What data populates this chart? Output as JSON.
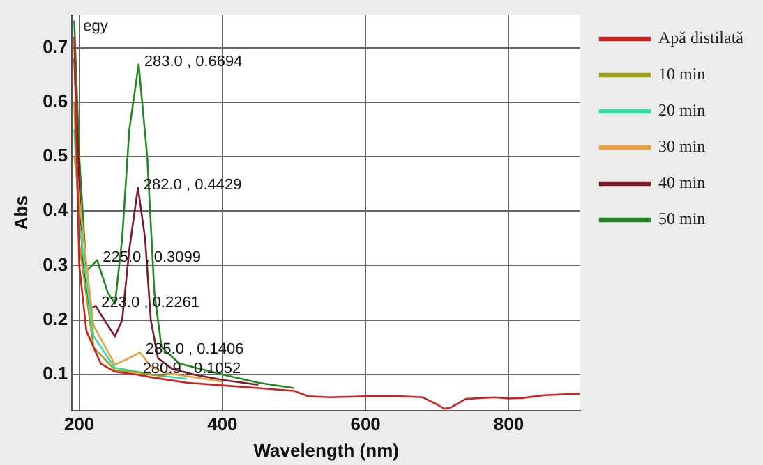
{
  "chart_data": {
    "type": "line",
    "xlabel": "Wavelength (nm)",
    "ylabel": "Abs",
    "xlim": [
      190,
      900
    ],
    "xticks": [
      200,
      400,
      600,
      800
    ],
    "ylim": [
      0.034,
      0.76
    ],
    "yticks": [
      0.1,
      0.2,
      0.3,
      0.4,
      0.5,
      0.6,
      0.7
    ],
    "grid": true,
    "line_style": "solid",
    "marker": "none",
    "legend": "right",
    "annotations": [
      "egy",
      {
        "text": "283.0 , 0.6694",
        "x": 283,
        "y": 0.6694
      },
      {
        "text": "282.0 , 0.4429",
        "x": 282,
        "y": 0.4429
      },
      {
        "text": "225.0 , 0.3099",
        "x": 225,
        "y": 0.3099
      },
      {
        "text": "223.0 , 0.2261",
        "x": 223,
        "y": 0.2261
      },
      {
        "text": "285.0 , 0.1406",
        "x": 285,
        "y": 0.1406
      },
      {
        "text": "280.9 , 0.1052",
        "x": 280.9,
        "y": 0.1052
      }
    ],
    "series": [
      {
        "name": "Apă distilată",
        "color": "#cc2222",
        "x": [
          193,
          200,
          210,
          230,
          250,
          280,
          300,
          350,
          400,
          450,
          500,
          520,
          550,
          600,
          650,
          680,
          700,
          710,
          720,
          740,
          780,
          800,
          820,
          850,
          900
        ],
        "values": [
          0.72,
          0.3,
          0.18,
          0.12,
          0.105,
          0.1,
          0.095,
          0.085,
          0.08,
          0.075,
          0.07,
          0.06,
          0.058,
          0.06,
          0.06,
          0.058,
          0.045,
          0.037,
          0.04,
          0.055,
          0.058,
          0.056,
          0.057,
          0.062,
          0.065
        ]
      },
      {
        "name": "10 min",
        "color": "#a0a020",
        "x": [
          193,
          200,
          220,
          250,
          281,
          300,
          320
        ],
        "values": [
          0.6,
          0.34,
          0.15,
          0.108,
          0.104,
          0.1,
          0.097
        ]
      },
      {
        "name": "20 min",
        "color": "#33ddaa",
        "x": [
          193,
          200,
          220,
          250,
          280.9,
          300,
          350
        ],
        "values": [
          0.55,
          0.38,
          0.17,
          0.112,
          0.1052,
          0.1,
          0.092
        ]
      },
      {
        "name": "30 min",
        "color": "#e8a040",
        "x": [
          193,
          200,
          220,
          250,
          270,
          285,
          300,
          320,
          350,
          400
        ],
        "values": [
          0.5,
          0.42,
          0.19,
          0.118,
          0.13,
          0.1406,
          0.115,
          0.103,
          0.097,
          0.087
        ]
      },
      {
        "name": "40 min",
        "color": "#7a1a2a",
        "x": [
          193,
          205,
          215,
          223,
          235,
          250,
          260,
          270,
          282,
          292,
          300,
          310,
          330,
          360,
          400,
          450
        ],
        "values": [
          0.68,
          0.3,
          0.22,
          0.2261,
          0.2,
          0.17,
          0.2,
          0.33,
          0.4429,
          0.35,
          0.2,
          0.13,
          0.11,
          0.1,
          0.09,
          0.081
        ]
      },
      {
        "name": "50 min",
        "color": "#228822",
        "x": [
          193,
          200,
          210,
          225,
          240,
          250,
          260,
          270,
          283,
          295,
          305,
          315,
          340,
          400,
          450,
          500
        ],
        "values": [
          0.75,
          0.5,
          0.29,
          0.3099,
          0.25,
          0.23,
          0.35,
          0.55,
          0.6694,
          0.5,
          0.25,
          0.15,
          0.12,
          0.1,
          0.085,
          0.075
        ]
      }
    ]
  }
}
